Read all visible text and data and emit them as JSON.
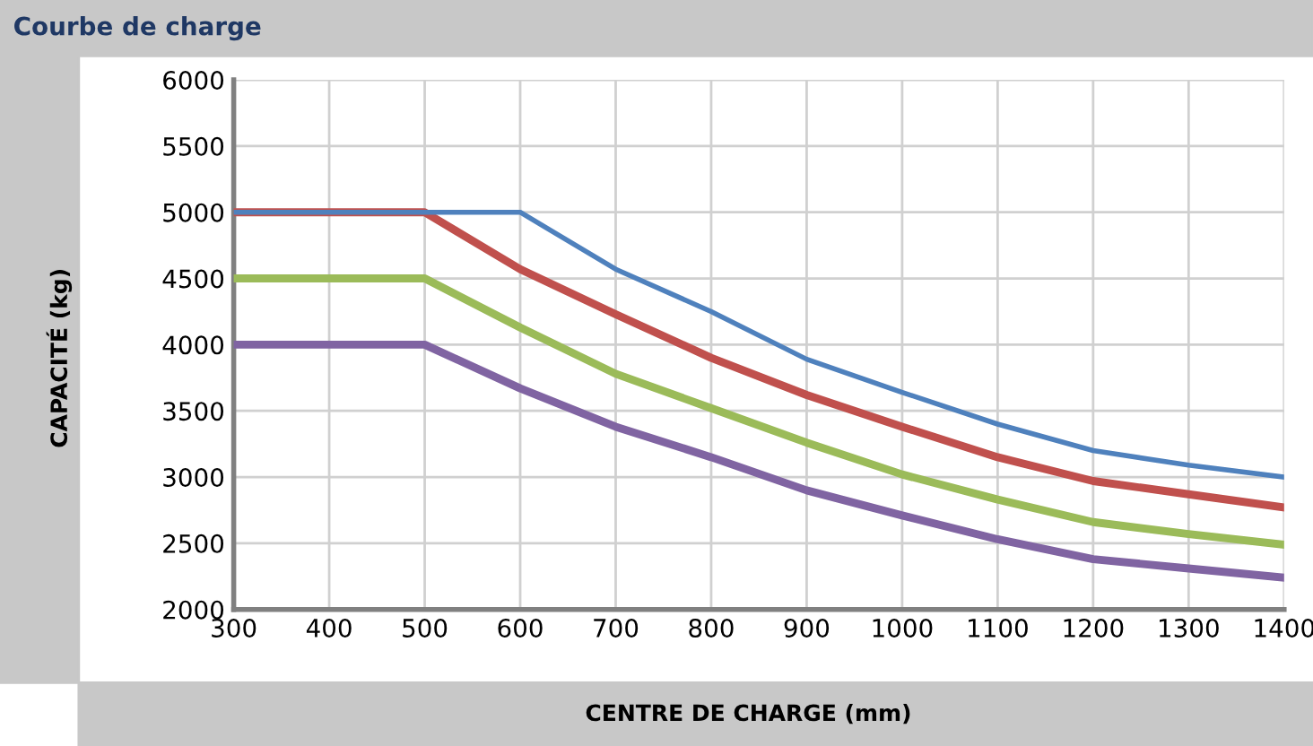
{
  "chart_data": {
    "type": "line",
    "title": "Courbe de charge",
    "xlabel": "CENTRE DE CHARGE (mm)",
    "ylabel": "CAPACITÉ (kg)",
    "x": [
      300,
      400,
      500,
      600,
      700,
      800,
      900,
      1000,
      1100,
      1200,
      1300,
      1400
    ],
    "series": [
      {
        "color": "#4f81bd",
        "values": [
          5000,
          5000,
          5000,
          5000,
          4570,
          4250,
          3890,
          3640,
          3400,
          3200,
          3090,
          3000
        ]
      },
      {
        "color": "#c0504d",
        "values": [
          5000,
          5000,
          5000,
          4570,
          4230,
          3900,
          3620,
          3380,
          3150,
          2970,
          2870,
          2770
        ]
      },
      {
        "color": "#9bbb59",
        "values": [
          4500,
          4500,
          4500,
          4130,
          3780,
          3520,
          3260,
          3020,
          2830,
          2660,
          2570,
          2490
        ]
      },
      {
        "color": "#8064a2",
        "values": [
          4000,
          4000,
          4000,
          3670,
          3380,
          3150,
          2900,
          2710,
          2530,
          2380,
          2310,
          2240
        ]
      }
    ],
    "xlim": [
      300,
      1400
    ],
    "xticks": [
      300,
      400,
      500,
      600,
      700,
      800,
      900,
      1000,
      1100,
      1200,
      1300,
      1400
    ],
    "ylim": [
      2000,
      6000
    ],
    "yticks": [
      2000,
      2500,
      3000,
      3500,
      4000,
      4500,
      5000,
      5500,
      6000
    ],
    "grid": true,
    "marker": "none",
    "line_style": "solid"
  }
}
